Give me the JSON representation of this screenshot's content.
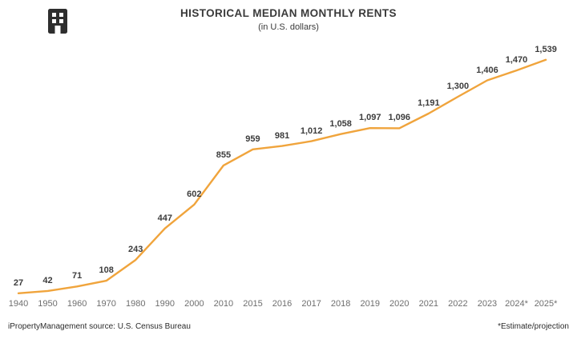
{
  "header": {
    "title": "HISTORICAL MEDIAN MONTHLY RENTS",
    "subtitle": "(in U.S. dollars)",
    "logo_icon": "building-icon"
  },
  "footer": {
    "source": "iPropertyManagement source: U.S. Census Bureau",
    "note": "*Estimate/projection"
  },
  "chart_data": {
    "type": "line",
    "title": "HISTORICAL MEDIAN MONTHLY RENTS",
    "subtitle": "(in U.S. dollars)",
    "xlabel": "",
    "ylabel": "",
    "categories": [
      "1940",
      "1950",
      "1960",
      "1970",
      "1980",
      "1990",
      "2000",
      "2010",
      "2015",
      "2016",
      "2017",
      "2018",
      "2019",
      "2020",
      "2021",
      "2022",
      "2023",
      "2024*",
      "2025*"
    ],
    "values": [
      27,
      42,
      71,
      108,
      243,
      447,
      602,
      855,
      959,
      981,
      1012,
      1058,
      1097,
      1096,
      1191,
      1300,
      1406,
      1470,
      1539
    ],
    "value_labels": [
      "27",
      "42",
      "71",
      "108",
      "243",
      "447",
      "602",
      "855",
      "959",
      "981",
      "1,012",
      "1,058",
      "1,097",
      "1,096",
      "1,191",
      "1,300",
      "1,406",
      "1,470",
      "1,539"
    ],
    "ylim": [
      0,
      1600
    ],
    "grid": false,
    "legend": false,
    "line_color": "#F0A43C",
    "data_label_color": "#3C3C3C",
    "tick_label_color": "#6E6E6E",
    "annotation": "*Estimate/projection"
  }
}
